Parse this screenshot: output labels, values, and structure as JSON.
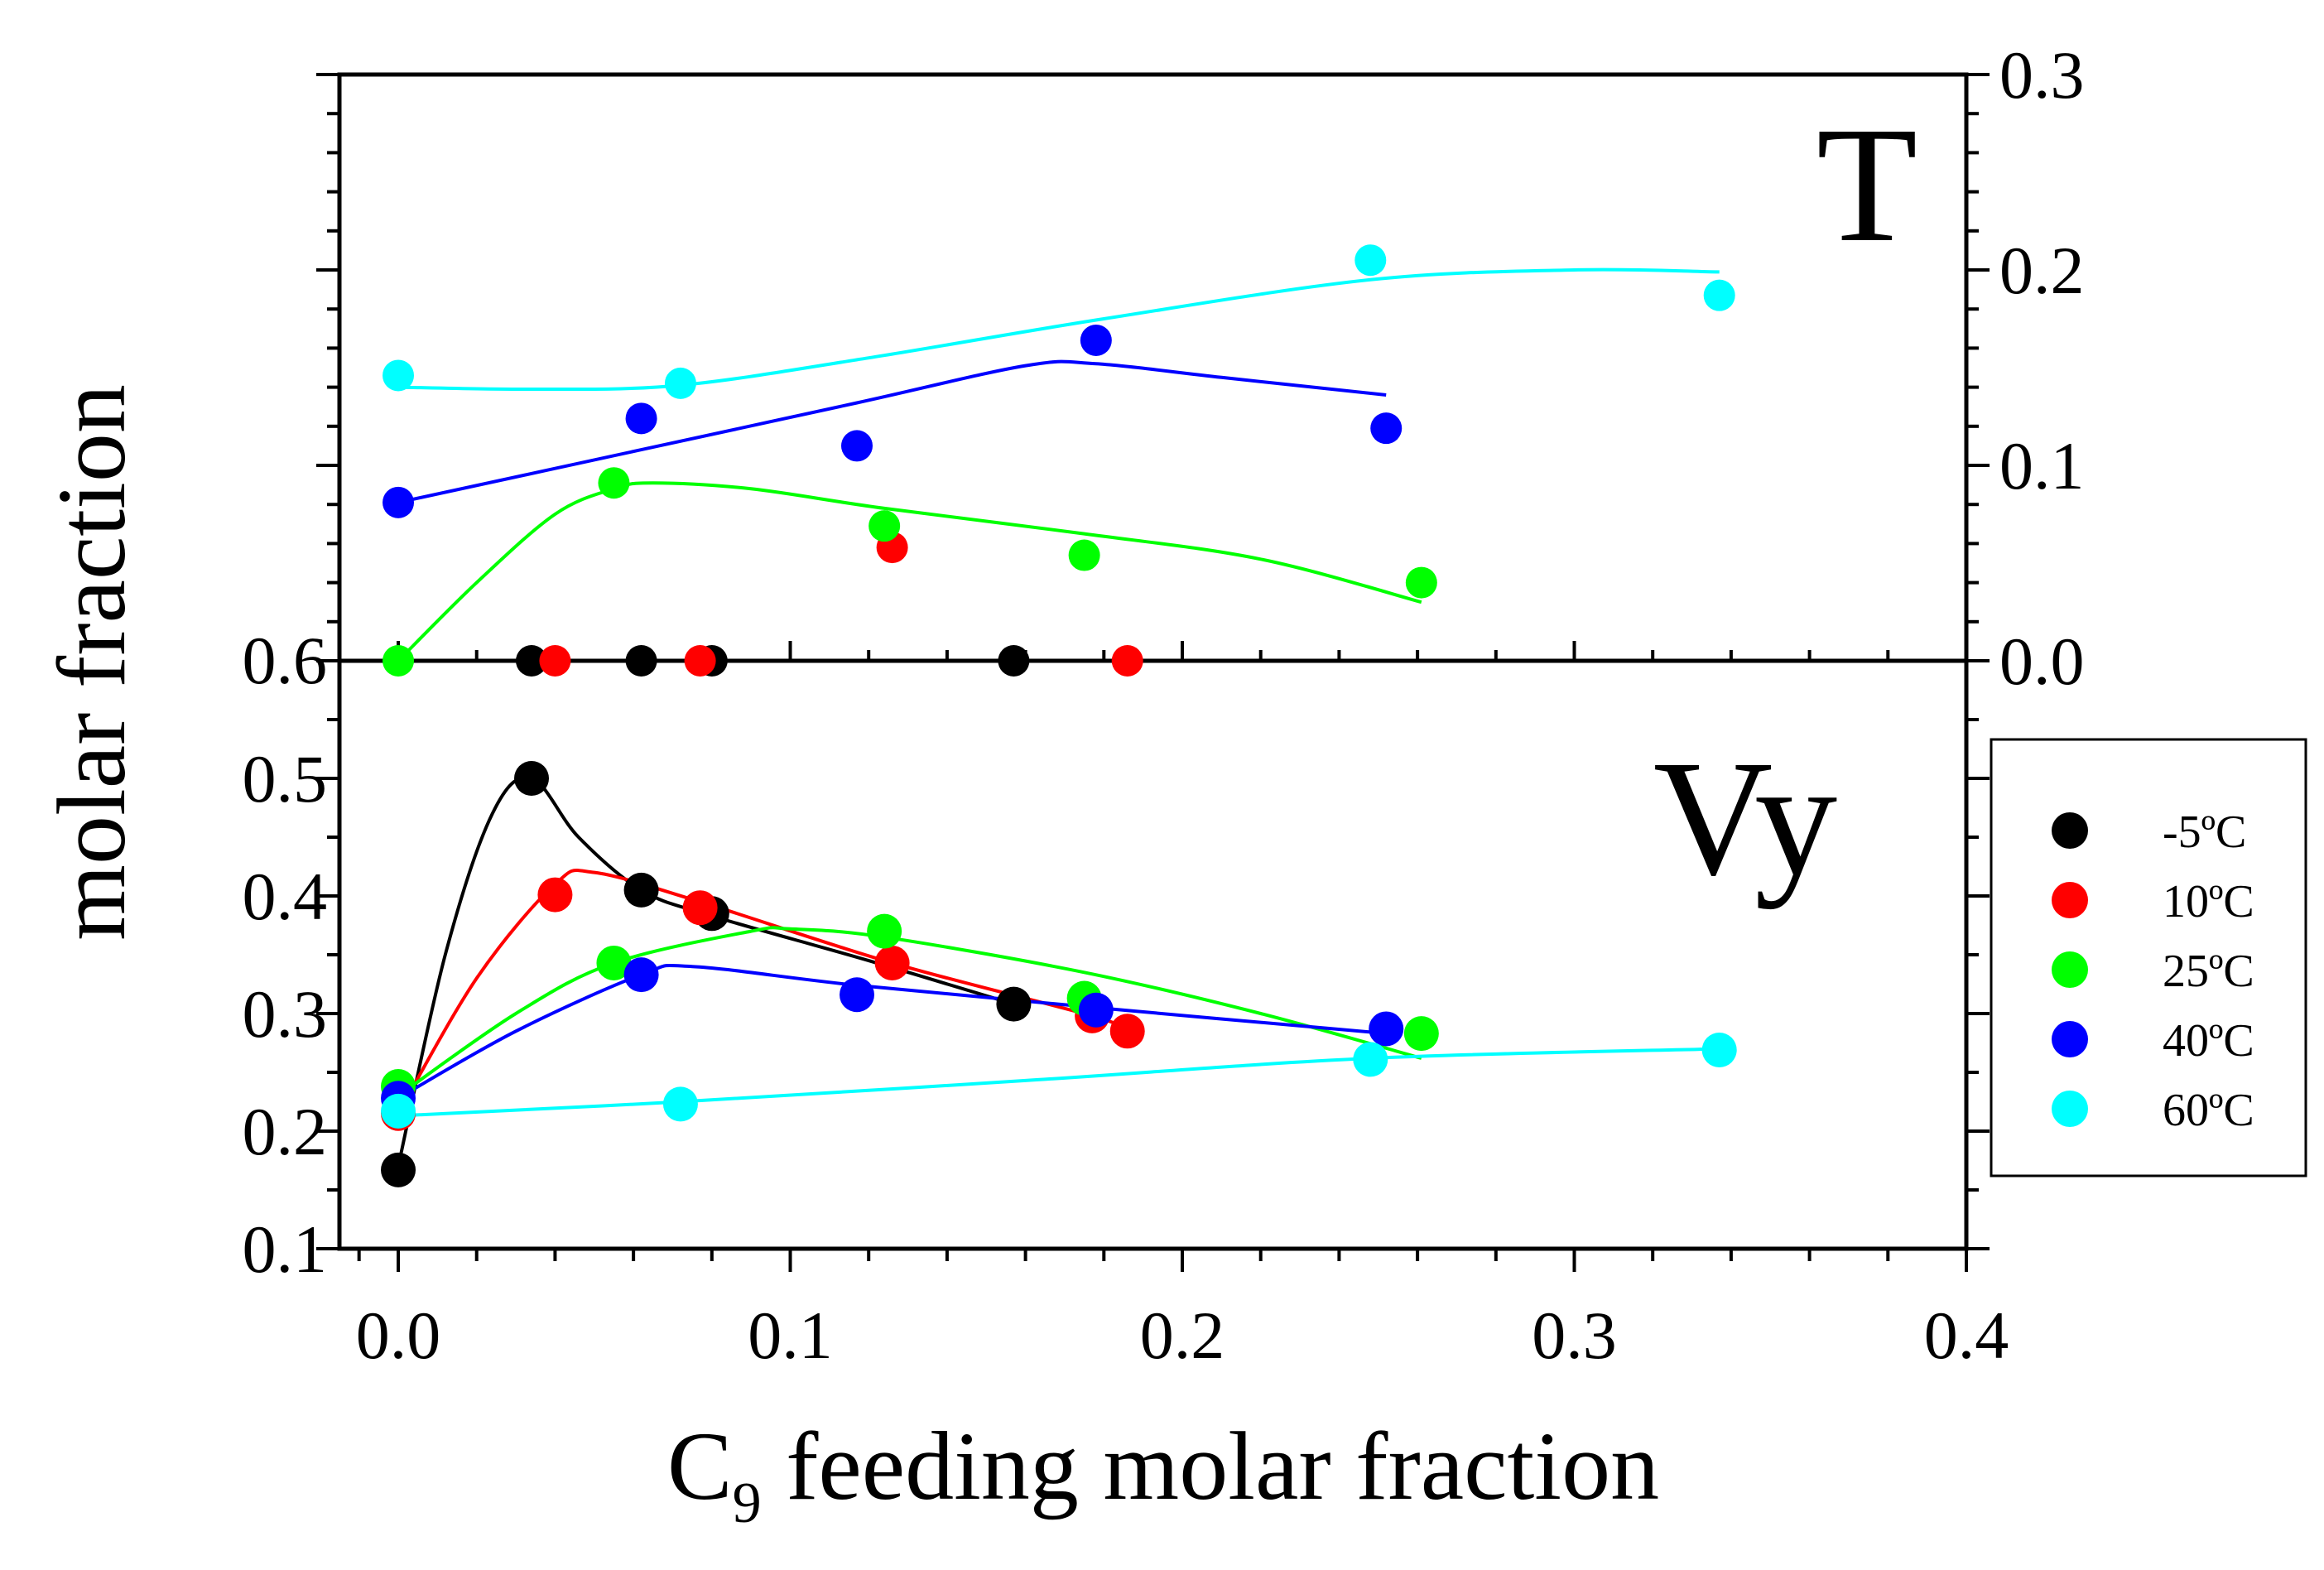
{
  "chart_data": {
    "type": "scatter",
    "xlabel_main": "C",
    "xlabel_sub": "9",
    "xlabel_rest": " feeding molar fraction",
    "ylabel": "molar fraction",
    "x_ticks": [
      "0.0",
      "0.1",
      "0.2",
      "0.3",
      "0.4"
    ],
    "xlim": [
      -0.015,
      0.4
    ],
    "panels": {
      "top": {
        "label": "T",
        "ylim": [
          0.0,
          0.3
        ],
        "y_tick_values": [
          0.0,
          0.1,
          0.2,
          0.3
        ],
        "y_ticks_right": [
          "0.0",
          "0.1",
          "0.2",
          "0.3"
        ],
        "left_boundary_label": "0.6"
      },
      "bottom": {
        "label": "Vy",
        "ylim": [
          0.1,
          0.6
        ],
        "y_tick_values": [
          0.1,
          0.2,
          0.3,
          0.4,
          0.5
        ],
        "y_ticks_left": [
          "0.1",
          "0.2",
          "0.3",
          "0.4",
          "0.5"
        ]
      }
    },
    "series": [
      {
        "name": "-5ºC",
        "color": "#000000",
        "T_points": [
          [
            0.034,
            0.0
          ],
          [
            0.062,
            0.0
          ],
          [
            0.08,
            0.0
          ],
          [
            0.157,
            0.0
          ]
        ],
        "T_curve": [],
        "Vy_points": [
          [
            0.0,
            0.167
          ],
          [
            0.034,
            0.5
          ],
          [
            0.062,
            0.405
          ],
          [
            0.08,
            0.385
          ],
          [
            0.157,
            0.308
          ]
        ],
        "Vy_curve": [
          [
            0.0,
            0.17
          ],
          [
            0.012,
            0.35
          ],
          [
            0.024,
            0.47
          ],
          [
            0.034,
            0.5
          ],
          [
            0.046,
            0.45
          ],
          [
            0.062,
            0.405
          ],
          [
            0.08,
            0.383
          ],
          [
            0.12,
            0.345
          ],
          [
            0.157,
            0.308
          ]
        ]
      },
      {
        "name": "10ºC",
        "color": "#ff0000",
        "T_points": [
          [
            0.04,
            0.0
          ],
          [
            0.077,
            0.0
          ],
          [
            0.126,
            0.058
          ],
          [
            0.186,
            0.0
          ]
        ],
        "T_curve": [],
        "Vy_points": [
          [
            0.0,
            0.215
          ],
          [
            0.04,
            0.401
          ],
          [
            0.077,
            0.39
          ],
          [
            0.126,
            0.343
          ],
          [
            0.177,
            0.298
          ],
          [
            0.186,
            0.285
          ]
        ],
        "Vy_curve": [
          [
            0.0,
            0.215
          ],
          [
            0.02,
            0.33
          ],
          [
            0.04,
            0.41
          ],
          [
            0.05,
            0.42
          ],
          [
            0.077,
            0.395
          ],
          [
            0.126,
            0.343
          ],
          [
            0.177,
            0.298
          ],
          [
            0.186,
            0.285
          ]
        ]
      },
      {
        "name": "25ºC",
        "color": "#00ff00",
        "T_points": [
          [
            0.0,
            0.0
          ],
          [
            0.055,
            0.091
          ],
          [
            0.124,
            0.069
          ],
          [
            0.175,
            0.054
          ],
          [
            0.261,
            0.04
          ]
        ],
        "T_curve": [
          [
            0.0,
            0.0
          ],
          [
            0.02,
            0.04
          ],
          [
            0.04,
            0.075
          ],
          [
            0.055,
            0.088
          ],
          [
            0.065,
            0.091
          ],
          [
            0.09,
            0.088
          ],
          [
            0.124,
            0.078
          ],
          [
            0.175,
            0.065
          ],
          [
            0.22,
            0.052
          ],
          [
            0.261,
            0.03
          ]
        ],
        "Vy_points": [
          [
            0.0,
            0.238
          ],
          [
            0.055,
            0.343
          ],
          [
            0.124,
            0.37
          ],
          [
            0.175,
            0.313
          ],
          [
            0.261,
            0.283
          ]
        ],
        "Vy_curve": [
          [
            0.0,
            0.23
          ],
          [
            0.03,
            0.3
          ],
          [
            0.055,
            0.343
          ],
          [
            0.09,
            0.37
          ],
          [
            0.1,
            0.372
          ],
          [
            0.124,
            0.365
          ],
          [
            0.175,
            0.335
          ],
          [
            0.22,
            0.3
          ],
          [
            0.261,
            0.262
          ]
        ]
      },
      {
        "name": "40ºC",
        "color": "#0000ff",
        "T_points": [
          [
            0.0,
            0.081
          ],
          [
            0.062,
            0.124
          ],
          [
            0.117,
            0.11
          ],
          [
            0.178,
            0.164
          ],
          [
            0.252,
            0.119
          ]
        ],
        "T_curve": [
          [
            0.0,
            0.081
          ],
          [
            0.062,
            0.108
          ],
          [
            0.117,
            0.132
          ],
          [
            0.16,
            0.151
          ],
          [
            0.178,
            0.152
          ],
          [
            0.21,
            0.145
          ],
          [
            0.252,
            0.136
          ]
        ],
        "Vy_points": [
          [
            0.0,
            0.228
          ],
          [
            0.062,
            0.333
          ],
          [
            0.117,
            0.316
          ],
          [
            0.178,
            0.303
          ],
          [
            0.252,
            0.287
          ]
        ],
        "Vy_curve": [
          [
            0.0,
            0.228
          ],
          [
            0.03,
            0.285
          ],
          [
            0.062,
            0.333
          ],
          [
            0.075,
            0.34
          ],
          [
            0.117,
            0.324
          ],
          [
            0.178,
            0.305
          ],
          [
            0.252,
            0.283
          ]
        ]
      },
      {
        "name": "60ºC",
        "color": "#00ffff",
        "T_points": [
          [
            0.0,
            0.146
          ],
          [
            0.072,
            0.142
          ],
          [
            0.248,
            0.205
          ],
          [
            0.337,
            0.187
          ]
        ],
        "T_curve": [
          [
            0.0,
            0.14
          ],
          [
            0.035,
            0.139
          ],
          [
            0.072,
            0.141
          ],
          [
            0.12,
            0.155
          ],
          [
            0.18,
            0.175
          ],
          [
            0.248,
            0.195
          ],
          [
            0.3,
            0.2
          ],
          [
            0.337,
            0.199
          ]
        ],
        "Vy_points": [
          [
            0.0,
            0.217
          ],
          [
            0.072,
            0.223
          ],
          [
            0.248,
            0.261
          ],
          [
            0.337,
            0.269
          ]
        ],
        "Vy_curve": [
          [
            0.0,
            0.213
          ],
          [
            0.072,
            0.225
          ],
          [
            0.16,
            0.243
          ],
          [
            0.248,
            0.262
          ],
          [
            0.337,
            0.27
          ]
        ]
      }
    ],
    "legend_position": "right"
  }
}
